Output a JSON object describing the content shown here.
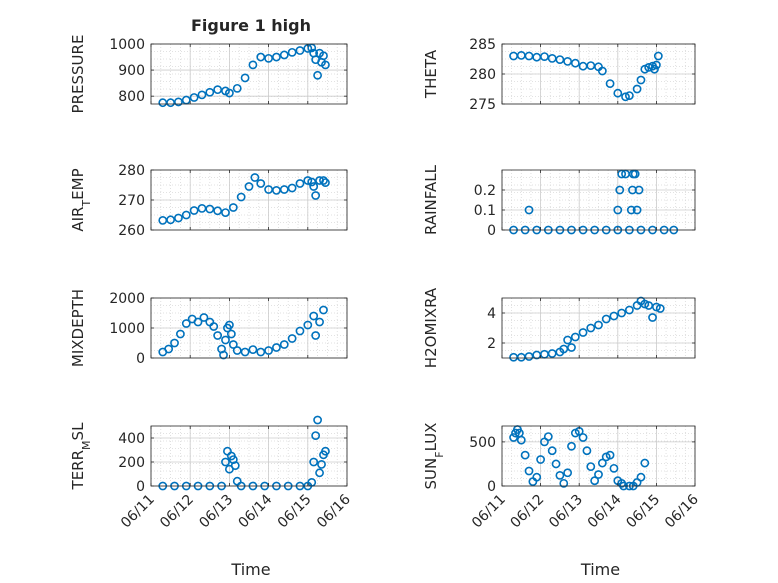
{
  "figure": {
    "title": "Figure 1 high",
    "marker_color": "#0072BD",
    "x_ticks": [
      "06/11",
      "06/12",
      "06/13",
      "06/14",
      "06/15",
      "06/16"
    ]
  },
  "chart_data": [
    {
      "type": "scatter",
      "panel": "left-1",
      "ylabel": "PRESSURE",
      "xlabel": "",
      "ylim": [
        770,
        1000
      ],
      "yticks": [
        800,
        900,
        1000
      ],
      "grid": true,
      "x_tick_labels_shown": false,
      "points": [
        [
          11.3,
          775
        ],
        [
          11.5,
          775
        ],
        [
          11.7,
          778
        ],
        [
          11.9,
          785
        ],
        [
          12.1,
          795
        ],
        [
          12.3,
          805
        ],
        [
          12.5,
          815
        ],
        [
          12.7,
          825
        ],
        [
          12.9,
          820
        ],
        [
          13.0,
          812
        ],
        [
          13.2,
          830
        ],
        [
          13.4,
          870
        ],
        [
          13.6,
          920
        ],
        [
          13.8,
          950
        ],
        [
          14.0,
          945
        ],
        [
          14.2,
          950
        ],
        [
          14.4,
          958
        ],
        [
          14.6,
          968
        ],
        [
          14.8,
          975
        ],
        [
          15.0,
          983
        ],
        [
          15.1,
          985
        ],
        [
          15.15,
          965
        ],
        [
          15.2,
          940
        ],
        [
          15.25,
          880
        ],
        [
          15.3,
          965
        ],
        [
          15.35,
          930
        ],
        [
          15.4,
          955
        ],
        [
          15.45,
          920
        ]
      ]
    },
    {
      "type": "scatter",
      "panel": "right-1",
      "ylabel": "THETA",
      "xlabel": "",
      "ylim": [
        275,
        285
      ],
      "yticks": [
        275,
        280,
        285
      ],
      "grid": true,
      "x_tick_labels_shown": false,
      "points": [
        [
          11.3,
          283
        ],
        [
          11.5,
          283.1
        ],
        [
          11.7,
          283
        ],
        [
          11.9,
          282.8
        ],
        [
          12.1,
          282.9
        ],
        [
          12.3,
          282.6
        ],
        [
          12.5,
          282.4
        ],
        [
          12.7,
          282.1
        ],
        [
          12.9,
          281.8
        ],
        [
          13.1,
          281.3
        ],
        [
          13.3,
          281.4
        ],
        [
          13.5,
          281.2
        ],
        [
          13.6,
          280.5
        ],
        [
          13.8,
          278.4
        ],
        [
          14.0,
          276.8
        ],
        [
          14.2,
          276.2
        ],
        [
          14.3,
          276.4
        ],
        [
          14.5,
          277.5
        ],
        [
          14.6,
          279
        ],
        [
          14.7,
          280.8
        ],
        [
          14.8,
          281.1
        ],
        [
          14.9,
          281.3
        ],
        [
          14.95,
          280.8
        ],
        [
          15.0,
          281.5
        ],
        [
          15.05,
          283
        ]
      ]
    },
    {
      "type": "scatter",
      "panel": "left-2",
      "ylabel": "AIR_TEMP",
      "xlabel": "",
      "ylim": [
        260,
        280
      ],
      "yticks": [
        260,
        270,
        280
      ],
      "grid": true,
      "x_tick_labels_shown": false,
      "points": [
        [
          11.3,
          263.2
        ],
        [
          11.5,
          263.4
        ],
        [
          11.7,
          264
        ],
        [
          11.9,
          265
        ],
        [
          12.1,
          266.5
        ],
        [
          12.3,
          267.2
        ],
        [
          12.5,
          267
        ],
        [
          12.7,
          266.4
        ],
        [
          12.9,
          265.8
        ],
        [
          13.1,
          267.5
        ],
        [
          13.3,
          271
        ],
        [
          13.5,
          274.5
        ],
        [
          13.65,
          277.5
        ],
        [
          13.8,
          275.5
        ],
        [
          14.0,
          273.5
        ],
        [
          14.2,
          273.2
        ],
        [
          14.4,
          273.5
        ],
        [
          14.6,
          274
        ],
        [
          14.8,
          275.5
        ],
        [
          15.0,
          276.5
        ],
        [
          15.1,
          276
        ],
        [
          15.15,
          274.5
        ],
        [
          15.2,
          271.5
        ],
        [
          15.3,
          276.5
        ],
        [
          15.4,
          276.5
        ],
        [
          15.45,
          275.8
        ]
      ]
    },
    {
      "type": "scatter",
      "panel": "right-2",
      "ylabel": "RAINFALL",
      "xlabel": "",
      "ylim": [
        0,
        0.3
      ],
      "yticks": [
        0,
        0.1,
        0.2
      ],
      "grid": true,
      "x_tick_labels_shown": false,
      "points": [
        [
          11.3,
          0
        ],
        [
          11.6,
          0
        ],
        [
          11.9,
          0
        ],
        [
          12.2,
          0
        ],
        [
          12.5,
          0
        ],
        [
          12.8,
          0
        ],
        [
          13.1,
          0
        ],
        [
          13.4,
          0
        ],
        [
          13.7,
          0
        ],
        [
          14.0,
          0
        ],
        [
          14.3,
          0
        ],
        [
          14.6,
          0
        ],
        [
          14.9,
          0
        ],
        [
          15.2,
          0
        ],
        [
          15.45,
          0
        ],
        [
          11.7,
          0.1
        ],
        [
          14.0,
          0.1
        ],
        [
          14.05,
          0.2
        ],
        [
          14.1,
          0.28
        ],
        [
          14.2,
          0.28
        ],
        [
          14.35,
          0.1
        ],
        [
          14.38,
          0.2
        ],
        [
          14.4,
          0.28
        ],
        [
          14.45,
          0.28
        ],
        [
          14.5,
          0.1
        ],
        [
          14.55,
          0.2
        ]
      ]
    },
    {
      "type": "scatter",
      "panel": "left-3",
      "ylabel": "MIXDEPTH",
      "xlabel": "",
      "ylim": [
        0,
        2000
      ],
      "yticks": [
        0,
        1000,
        2000
      ],
      "grid": true,
      "x_tick_labels_shown": false,
      "points": [
        [
          11.3,
          200
        ],
        [
          11.45,
          300
        ],
        [
          11.6,
          500
        ],
        [
          11.75,
          800
        ],
        [
          11.9,
          1150
        ],
        [
          12.05,
          1300
        ],
        [
          12.2,
          1200
        ],
        [
          12.35,
          1350
        ],
        [
          12.5,
          1200
        ],
        [
          12.6,
          1050
        ],
        [
          12.7,
          750
        ],
        [
          12.8,
          300
        ],
        [
          12.85,
          100
        ],
        [
          12.9,
          600
        ],
        [
          12.95,
          1000
        ],
        [
          13.0,
          1100
        ],
        [
          13.05,
          800
        ],
        [
          13.1,
          450
        ],
        [
          13.2,
          250
        ],
        [
          13.4,
          200
        ],
        [
          13.6,
          280
        ],
        [
          13.8,
          200
        ],
        [
          14.0,
          250
        ],
        [
          14.2,
          350
        ],
        [
          14.4,
          450
        ],
        [
          14.6,
          650
        ],
        [
          14.8,
          900
        ],
        [
          15.0,
          1100
        ],
        [
          15.15,
          1400
        ],
        [
          15.2,
          750
        ],
        [
          15.3,
          1200
        ],
        [
          15.4,
          1600
        ]
      ]
    },
    {
      "type": "scatter",
      "panel": "right-3",
      "ylabel": "H2OMIXRA",
      "xlabel": "",
      "ylim": [
        1,
        5
      ],
      "yticks": [
        2,
        4
      ],
      "grid": true,
      "x_tick_labels_shown": false,
      "points": [
        [
          11.3,
          1.05
        ],
        [
          11.5,
          1.05
        ],
        [
          11.7,
          1.1
        ],
        [
          11.9,
          1.2
        ],
        [
          12.1,
          1.25
        ],
        [
          12.3,
          1.3
        ],
        [
          12.5,
          1.4
        ],
        [
          12.6,
          1.6
        ],
        [
          12.7,
          2.2
        ],
        [
          12.8,
          1.7
        ],
        [
          12.9,
          2.4
        ],
        [
          13.1,
          2.7
        ],
        [
          13.3,
          3
        ],
        [
          13.5,
          3.2
        ],
        [
          13.7,
          3.6
        ],
        [
          13.9,
          3.8
        ],
        [
          14.1,
          4.0
        ],
        [
          14.3,
          4.2
        ],
        [
          14.5,
          4.5
        ],
        [
          14.6,
          4.8
        ],
        [
          14.7,
          4.6
        ],
        [
          14.8,
          4.5
        ],
        [
          14.9,
          3.7
        ],
        [
          15.0,
          4.4
        ],
        [
          15.1,
          4.3
        ]
      ]
    },
    {
      "type": "scatter",
      "panel": "left-4",
      "ylabel": "TERR_MSL",
      "xlabel": "Time",
      "ylim": [
        0,
        500
      ],
      "yticks": [
        0,
        200,
        400
      ],
      "grid": true,
      "x_tick_labels_shown": true,
      "points": [
        [
          11.3,
          0
        ],
        [
          11.6,
          0
        ],
        [
          11.9,
          0
        ],
        [
          12.2,
          0
        ],
        [
          12.5,
          0
        ],
        [
          12.8,
          0
        ],
        [
          12.9,
          200
        ],
        [
          12.95,
          290
        ],
        [
          13.0,
          140
        ],
        [
          13.05,
          250
        ],
        [
          13.1,
          220
        ],
        [
          13.15,
          170
        ],
        [
          13.2,
          40
        ],
        [
          13.3,
          0
        ],
        [
          13.6,
          0
        ],
        [
          13.9,
          0
        ],
        [
          14.2,
          0
        ],
        [
          14.5,
          0
        ],
        [
          14.8,
          0
        ],
        [
          15.0,
          0
        ],
        [
          15.1,
          30
        ],
        [
          15.15,
          200
        ],
        [
          15.2,
          420
        ],
        [
          15.25,
          550
        ],
        [
          15.3,
          110
        ],
        [
          15.35,
          180
        ],
        [
          15.4,
          260
        ],
        [
          15.45,
          290
        ]
      ]
    },
    {
      "type": "scatter",
      "panel": "right-4",
      "ylabel": "SUN_FLUX",
      "xlabel": "Time",
      "ylim": [
        0,
        680
      ],
      "yticks": [
        0,
        500
      ],
      "grid": true,
      "x_tick_labels_shown": true,
      "points": [
        [
          11.3,
          550
        ],
        [
          11.35,
          600
        ],
        [
          11.4,
          640
        ],
        [
          11.45,
          600
        ],
        [
          11.5,
          520
        ],
        [
          11.6,
          350
        ],
        [
          11.7,
          170
        ],
        [
          11.8,
          50
        ],
        [
          11.9,
          100
        ],
        [
          12.0,
          300
        ],
        [
          12.1,
          500
        ],
        [
          12.2,
          560
        ],
        [
          12.3,
          400
        ],
        [
          12.4,
          250
        ],
        [
          12.5,
          120
        ],
        [
          12.6,
          30
        ],
        [
          12.7,
          150
        ],
        [
          12.8,
          450
        ],
        [
          12.9,
          600
        ],
        [
          13.0,
          620
        ],
        [
          13.1,
          550
        ],
        [
          13.2,
          400
        ],
        [
          13.3,
          220
        ],
        [
          13.4,
          60
        ],
        [
          13.5,
          130
        ],
        [
          13.6,
          260
        ],
        [
          13.7,
          330
        ],
        [
          13.8,
          350
        ],
        [
          13.9,
          200
        ],
        [
          14.0,
          60
        ],
        [
          14.1,
          30
        ],
        [
          14.15,
          0
        ],
        [
          14.3,
          0
        ],
        [
          14.4,
          0
        ],
        [
          14.5,
          40
        ],
        [
          14.6,
          100
        ],
        [
          14.7,
          260
        ]
      ]
    }
  ]
}
